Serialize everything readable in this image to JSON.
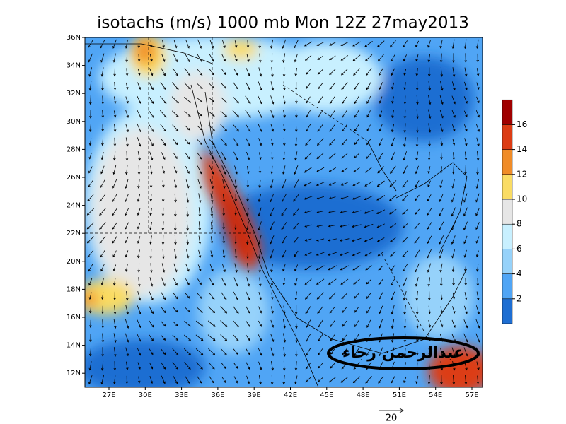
{
  "title": "isotachs (m/s) 1000 mb Mon 12Z 27may2013",
  "latitude_labels": [
    "36N",
    "34N",
    "32N",
    "30N",
    "28N",
    "26N",
    "24N",
    "22N",
    "20N",
    "18N",
    "16N",
    "14N",
    "12N"
  ],
  "longitude_labels": [
    "27E",
    "30E",
    "33E",
    "36E",
    "39E",
    "42E",
    "45E",
    "48E",
    "51E",
    "54E",
    "57E"
  ],
  "colorbar": {
    "labels": [
      "2",
      "4",
      "6",
      "8",
      "10",
      "12",
      "14",
      "16"
    ],
    "colors": [
      "#1e6ed2",
      "#50a5f5",
      "#96d2fa",
      "#c8f0ff",
      "#e6e6e6",
      "#fadc64",
      "#f08c28",
      "#dc3c14",
      "#a00000"
    ]
  },
  "vector_reference": "20",
  "watermark": "عبدالرحمن رجاء"
}
